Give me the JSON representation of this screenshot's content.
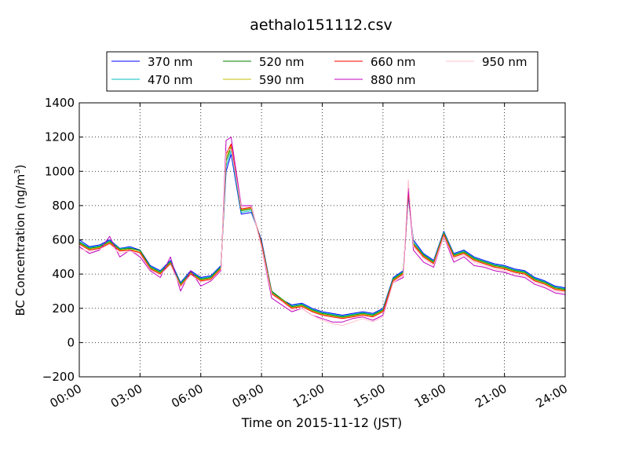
{
  "chart_data": {
    "type": "line",
    "title": "aethalo151112.csv",
    "xlabel": "Time on 2015-11-12 (JST)",
    "ylabel_main": "BC Concentration (ng/m",
    "ylabel_sup": "3",
    "ylabel_close": ")",
    "xlim": [
      "2015-11-12 00:00",
      "2015-11-13 00:00"
    ],
    "ylim": [
      -200,
      1400
    ],
    "grid": true,
    "legend_position": "top-center",
    "x_tick_labels": [
      "00:00",
      "03:00",
      "06:00",
      "09:00",
      "12:00",
      "15:00",
      "18:00",
      "21:00",
      "24:00"
    ],
    "y_tick_labels": [
      "−200",
      "0",
      "200",
      "400",
      "600",
      "800",
      "1000",
      "1200",
      "1400"
    ],
    "y_ticks": [
      -200,
      0,
      200,
      400,
      600,
      800,
      1000,
      1200,
      1400
    ],
    "x_hours": [
      0,
      0.5,
      1,
      1.5,
      2,
      2.5,
      3,
      3.5,
      4,
      4.5,
      5,
      5.5,
      6,
      6.5,
      7,
      7.25,
      7.5,
      8,
      8.5,
      9,
      9.5,
      10,
      10.5,
      11,
      11.5,
      12,
      12.5,
      13,
      13.5,
      14,
      14.5,
      15,
      15.5,
      16,
      16.25,
      16.5,
      17,
      17.5,
      18,
      18.5,
      19,
      19.5,
      20,
      20.5,
      21,
      21.5,
      22,
      22.5,
      23,
      23.5,
      24
    ],
    "series": [
      {
        "name": "370 nm",
        "color": "#0000ff",
        "values": [
          600,
          560,
          570,
          600,
          550,
          560,
          540,
          450,
          420,
          480,
          350,
          420,
          380,
          390,
          450,
          1000,
          1100,
          750,
          760,
          600,
          300,
          250,
          220,
          230,
          200,
          180,
          170,
          160,
          170,
          180,
          170,
          200,
          380,
          420,
          850,
          600,
          520,
          480,
          650,
          520,
          540,
          500,
          480,
          460,
          450,
          430,
          420,
          380,
          360,
          330,
          320
        ]
      },
      {
        "name": "470 nm",
        "color": "#00bfbf",
        "values": [
          590,
          555,
          565,
          595,
          548,
          555,
          535,
          445,
          415,
          475,
          345,
          415,
          375,
          385,
          445,
          1030,
          1120,
          760,
          770,
          590,
          295,
          245,
          215,
          225,
          195,
          175,
          165,
          155,
          165,
          175,
          165,
          195,
          375,
          415,
          860,
          590,
          515,
          475,
          645,
          515,
          535,
          495,
          475,
          455,
          445,
          425,
          415,
          375,
          355,
          325,
          315
        ]
      },
      {
        "name": "520 nm",
        "color": "#008000",
        "values": [
          585,
          550,
          560,
          590,
          545,
          550,
          540,
          440,
          410,
          470,
          340,
          410,
          370,
          380,
          440,
          1060,
          1140,
          770,
          780,
          585,
          300,
          255,
          210,
          220,
          190,
          170,
          160,
          150,
          160,
          170,
          160,
          190,
          370,
          410,
          870,
          580,
          510,
          470,
          640,
          510,
          530,
          490,
          470,
          450,
          440,
          420,
          410,
          370,
          350,
          320,
          310
        ]
      },
      {
        "name": "590 nm",
        "color": "#bfbf00",
        "values": [
          580,
          545,
          555,
          585,
          540,
          545,
          530,
          435,
          405,
          465,
          335,
          405,
          365,
          375,
          435,
          1080,
          1150,
          775,
          785,
          580,
          290,
          250,
          205,
          215,
          185,
          165,
          155,
          145,
          155,
          165,
          155,
          185,
          365,
          405,
          875,
          575,
          505,
          465,
          635,
          505,
          525,
          485,
          465,
          445,
          435,
          415,
          405,
          365,
          345,
          315,
          305
        ]
      },
      {
        "name": "660 nm",
        "color": "#ff0000",
        "values": [
          575,
          540,
          550,
          580,
          535,
          540,
          525,
          430,
          400,
          460,
          330,
          400,
          360,
          370,
          430,
          1100,
          1160,
          780,
          790,
          575,
          285,
          245,
          200,
          210,
          180,
          160,
          150,
          140,
          150,
          160,
          150,
          180,
          360,
          400,
          880,
          570,
          500,
          460,
          630,
          500,
          520,
          480,
          460,
          440,
          430,
          410,
          400,
          360,
          340,
          310,
          300
        ]
      },
      {
        "name": "880 nm",
        "color": "#bf00bf",
        "values": [
          560,
          520,
          540,
          620,
          500,
          540,
          500,
          420,
          380,
          500,
          300,
          420,
          330,
          360,
          420,
          1180,
          1200,
          800,
          800,
          560,
          260,
          220,
          180,
          200,
          160,
          140,
          120,
          120,
          140,
          150,
          130,
          160,
          350,
          380,
          900,
          540,
          470,
          440,
          620,
          470,
          500,
          450,
          440,
          420,
          410,
          390,
          380,
          340,
          320,
          290,
          280
        ]
      },
      {
        "name": "950 nm",
        "color": "#ffc0cb",
        "values": [
          550,
          530,
          545,
          575,
          520,
          535,
          515,
          425,
          395,
          455,
          325,
          395,
          355,
          365,
          425,
          1120,
          1130,
          790,
          795,
          560,
          280,
          240,
          190,
          200,
          160,
          130,
          110,
          100,
          120,
          140,
          120,
          150,
          350,
          390,
          950,
          560,
          490,
          450,
          620,
          490,
          510,
          470,
          450,
          430,
          420,
          400,
          390,
          350,
          330,
          300,
          290
        ]
      }
    ]
  }
}
